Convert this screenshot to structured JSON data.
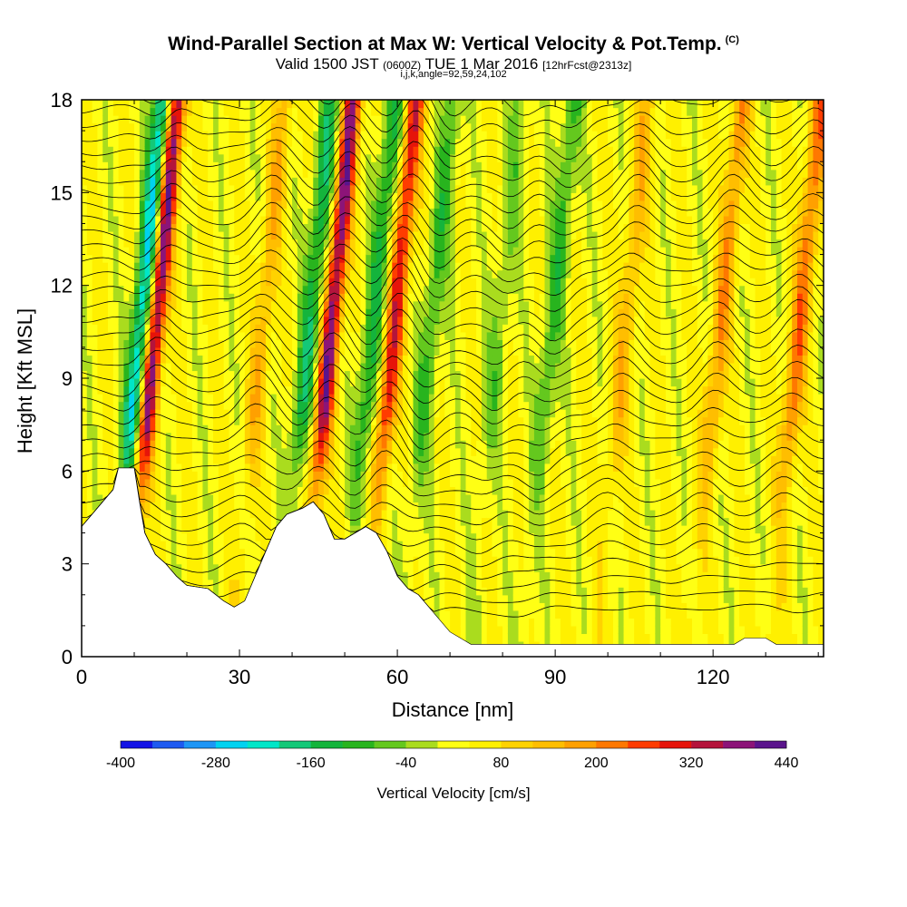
{
  "header": {
    "title": "Wind-Parallel Section at Max W: Vertical Velocity & Pot.Temp.",
    "copyright": "(C)",
    "valid_pre": "Valid 1500 JST",
    "valid_z": "(0600Z)",
    "valid_post": "TUE 1 Mar 2016",
    "forecast": "[12hrFcst@2313z]",
    "indices": "i,j,k,angle=92,59,24,102"
  },
  "chart_data": {
    "type": "heatmap",
    "xlabel": "Distance [nm]",
    "ylabel": "Height [Kft MSL]",
    "xlim": [
      0,
      141
    ],
    "ylim": [
      0,
      18
    ],
    "x_ticks": [
      "0",
      "30",
      "60",
      "90",
      "120"
    ],
    "x_tick_values": [
      0,
      30,
      60,
      90,
      120
    ],
    "y_ticks": [
      "0",
      "3",
      "6",
      "9",
      "12",
      "15",
      "18"
    ],
    "y_tick_values": [
      0,
      3,
      6,
      9,
      12,
      15,
      18
    ],
    "colorbar": {
      "title": "Vertical Velocity [cm/s]",
      "levels": [
        -400,
        -360,
        -320,
        -280,
        -240,
        -200,
        -160,
        -120,
        -80,
        -40,
        0,
        40,
        80,
        120,
        160,
        200,
        240,
        280,
        320,
        360,
        400,
        440
      ],
      "tick_labels": [
        "-400",
        "-280",
        "-160",
        "-40",
        "80",
        "200",
        "320",
        "440"
      ],
      "colors": [
        "#1414e6",
        "#1e5af0",
        "#1e96f5",
        "#00d2f0",
        "#00e6c8",
        "#14c878",
        "#14b43c",
        "#28b41e",
        "#64c81e",
        "#aadc1e",
        "#ffff14",
        "#fff000",
        "#ffd200",
        "#ffbe00",
        "#ffa000",
        "#ff7800",
        "#ff3c00",
        "#e6140a",
        "#b4143c",
        "#8c1478",
        "#5a148c"
      ]
    },
    "updraft_bands": [
      {
        "x": 12.5,
        "w_max": 400
      },
      {
        "x": 46,
        "w_max": 360
      },
      {
        "x": 58,
        "w_max": 280
      },
      {
        "x": 33,
        "w_max": 120
      },
      {
        "x": 102,
        "w_max": 120
      },
      {
        "x": 120,
        "w_max": 160
      },
      {
        "x": 135,
        "w_max": 200
      }
    ],
    "downdraft_bands": [
      {
        "x": 10,
        "w_min": -300
      },
      {
        "x": 42,
        "w_min": -180
      },
      {
        "x": 54,
        "w_min": -160
      },
      {
        "x": 65,
        "w_min": -120
      },
      {
        "x": 78,
        "w_min": -80
      },
      {
        "x": 88,
        "w_min": -120
      }
    ],
    "terrain": [
      [
        0,
        4.2
      ],
      [
        2,
        4.6
      ],
      [
        4,
        5.0
      ],
      [
        6,
        5.4
      ],
      [
        7,
        6.1
      ],
      [
        10,
        6.1
      ],
      [
        11,
        5.0
      ],
      [
        12,
        4.0
      ],
      [
        14,
        3.3
      ],
      [
        16,
        3.0
      ],
      [
        18,
        2.6
      ],
      [
        20,
        2.3
      ],
      [
        24,
        2.2
      ],
      [
        27,
        1.8
      ],
      [
        29,
        1.6
      ],
      [
        31,
        1.8
      ],
      [
        33,
        2.6
      ],
      [
        35,
        3.4
      ],
      [
        37,
        4.2
      ],
      [
        39,
        4.6
      ],
      [
        42,
        4.8
      ],
      [
        44,
        5.0
      ],
      [
        46,
        4.6
      ],
      [
        48,
        3.8
      ],
      [
        50,
        3.8
      ],
      [
        52,
        4.0
      ],
      [
        54,
        4.2
      ],
      [
        56,
        4.0
      ],
      [
        58,
        3.4
      ],
      [
        60,
        2.6
      ],
      [
        62,
        2.2
      ],
      [
        64,
        2.0
      ],
      [
        66,
        1.6
      ],
      [
        68,
        1.2
      ],
      [
        70,
        0.8
      ],
      [
        72,
        0.6
      ],
      [
        74,
        0.4
      ],
      [
        124,
        0.4
      ],
      [
        126,
        0.6
      ],
      [
        130,
        0.6
      ],
      [
        132,
        0.4
      ],
      [
        141,
        0.4
      ]
    ]
  }
}
